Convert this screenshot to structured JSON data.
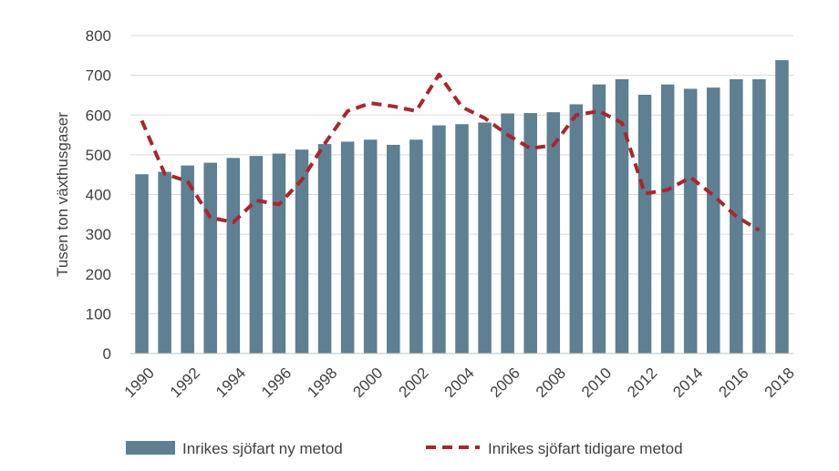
{
  "chart_data": {
    "type": "bar",
    "title": "",
    "xlabel": "",
    "ylabel": "Tusen ton växthusgaser",
    "ylim": [
      0,
      800
    ],
    "yticks": [
      0,
      100,
      200,
      300,
      400,
      500,
      600,
      700,
      800
    ],
    "categories": [
      "1990",
      "1991",
      "1992",
      "1993",
      "1994",
      "1995",
      "1996",
      "1997",
      "1998",
      "1999",
      "2000",
      "2001",
      "2002",
      "2003",
      "2004",
      "2005",
      "2006",
      "2007",
      "2008",
      "2009",
      "2010",
      "2011",
      "2012",
      "2013",
      "2014",
      "2015",
      "2016",
      "2017",
      "2018"
    ],
    "xtick_labels": [
      "1990",
      "1992",
      "1994",
      "1996",
      "1998",
      "2000",
      "2002",
      "2004",
      "2006",
      "2008",
      "2010",
      "2012",
      "2014",
      "2016",
      "2018"
    ],
    "grid": "horizontal",
    "legend_position": "bottom",
    "series": [
      {
        "name": "Inrikes sjöfart ny metod",
        "kind": "bar",
        "color": "#5f7f92",
        "values": [
          451,
          457,
          473,
          480,
          492,
          497,
          503,
          513,
          527,
          533,
          538,
          525,
          538,
          574,
          577,
          581,
          604,
          605,
          607,
          627,
          677,
          690,
          651,
          677,
          666,
          669,
          690,
          690,
          738
        ]
      },
      {
        "name": "Inrikes sjöfart tidigare metod",
        "kind": "line",
        "style": "dashed",
        "color": "#a5282e",
        "values": [
          586,
          452,
          433,
          342,
          330,
          385,
          375,
          437,
          528,
          610,
          630,
          622,
          610,
          702,
          620,
          592,
          550,
          516,
          524,
          600,
          610,
          580,
          402,
          412,
          443,
          398,
          345,
          310,
          null
        ]
      }
    ]
  }
}
